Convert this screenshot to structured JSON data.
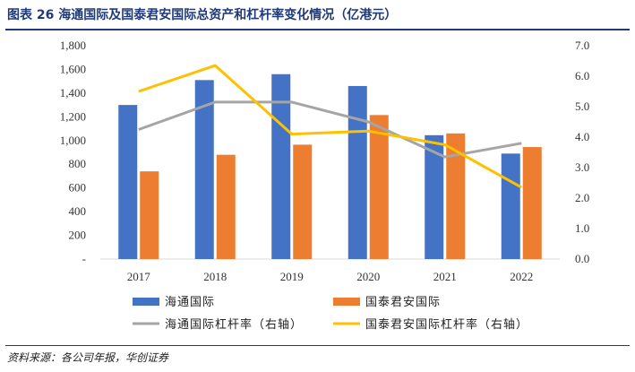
{
  "header": {
    "title": "图表 26 海通国际及国泰君安国际总资产和杠杆率变化情况（亿港元）"
  },
  "footer": {
    "source": "资料来源：各公司年报，华创证券"
  },
  "colors": {
    "haitong_bar": "#4472C4",
    "guotai_bar": "#ED7D31",
    "haitong_line": "#A5A5A5",
    "guotai_line": "#FFC000",
    "axis": "#D9D9D9",
    "title": "#1f3a78"
  },
  "chart_data": {
    "type": "bar",
    "title": "海通国际及国泰君安国际总资产和杠杆率变化情况（亿港元）",
    "categories": [
      "2017",
      "2018",
      "2019",
      "2020",
      "2021",
      "2022"
    ],
    "series": [
      {
        "name": "海通国际",
        "type": "bar",
        "axis": "left",
        "values": [
          1300,
          1510,
          1560,
          1460,
          1045,
          890
        ]
      },
      {
        "name": "国泰君安国际",
        "type": "bar",
        "axis": "left",
        "values": [
          740,
          880,
          965,
          1215,
          1060,
          945
        ]
      },
      {
        "name": "海通国际杠杆率（右轴）",
        "type": "line",
        "axis": "right",
        "values": [
          4.25,
          5.15,
          5.15,
          4.5,
          3.35,
          3.8
        ]
      },
      {
        "name": "国泰君安国际杠杆率（右轴）",
        "type": "line",
        "axis": "right",
        "values": [
          5.5,
          6.35,
          4.1,
          4.2,
          3.75,
          2.35
        ]
      }
    ],
    "y_left": {
      "min": 0,
      "max": 1800,
      "step": 200,
      "tick_labels": [
        "-",
        "200",
        "400",
        "600",
        "800",
        "1,000",
        "1,200",
        "1,400",
        "1,600",
        "1,800"
      ]
    },
    "y_right": {
      "min": 0,
      "max": 7,
      "step": 1,
      "tick_labels": [
        "0.0",
        "1.0",
        "2.0",
        "3.0",
        "4.0",
        "5.0",
        "6.0",
        "7.0"
      ]
    },
    "legend_position": "bottom"
  }
}
